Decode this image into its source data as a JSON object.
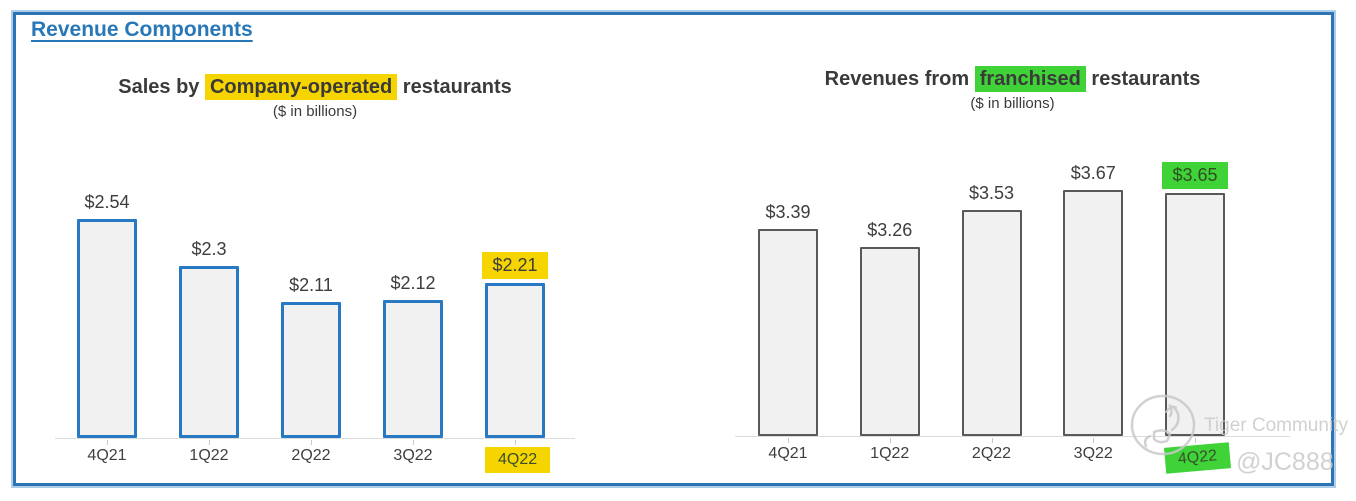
{
  "page": {
    "title": "Revenue Components",
    "watermark": {
      "brand": "Tiger Community",
      "handle": "@JC888"
    }
  },
  "colors": {
    "frame_border": "#2e74b5",
    "frame_glow": "#aecde9",
    "heading_blue": "#2878b8",
    "left_bar_border": "#2779c4",
    "right_bar_border": "#58595b",
    "bar_fill": "#f1f1f2",
    "yellow_highlight": "#f5d400",
    "green_highlight": "#3fd338",
    "axis_line": "#dcdcdc",
    "text_dark": "#3a3a3a",
    "watermark_gray": "#c9cac9"
  },
  "chart_data": [
    {
      "type": "bar",
      "title_prefix": "Sales by ",
      "title_highlight": "Company-operated",
      "title_suffix": " restaurants",
      "subtitle": "($ in billions)",
      "categories": [
        "4Q21",
        "1Q22",
        "2Q22",
        "3Q22",
        "4Q22"
      ],
      "values": [
        2.54,
        2.3,
        2.11,
        2.12,
        2.21
      ],
      "labels": [
        "$2.54",
        "$2.3",
        "$2.11",
        "$2.12",
        "$2.21"
      ],
      "ylim": [
        1.4,
        2.6
      ],
      "grid": false,
      "legend": "none",
      "bar_border_color": "#2779c4",
      "bar_fill_color": "#f1f1f2",
      "highlight_index": 4,
      "highlight_color": "#f5d400"
    },
    {
      "type": "bar",
      "title_prefix": "Revenues from ",
      "title_highlight": "franchised",
      "title_suffix": " restaurants",
      "subtitle": "($ in billions)",
      "categories": [
        "4Q21",
        "1Q22",
        "2Q22",
        "3Q22",
        "4Q22"
      ],
      "values": [
        3.39,
        3.26,
        3.53,
        3.67,
        3.65
      ],
      "labels": [
        "$3.39",
        "$3.26",
        "$3.53",
        "$3.67",
        "$3.65"
      ],
      "ylim": [
        1.9,
        3.7
      ],
      "grid": false,
      "legend": "none",
      "bar_border_color": "#58595b",
      "bar_fill_color": "#f1f1f2",
      "highlight_index": 4,
      "highlight_color": "#3fd338"
    }
  ]
}
